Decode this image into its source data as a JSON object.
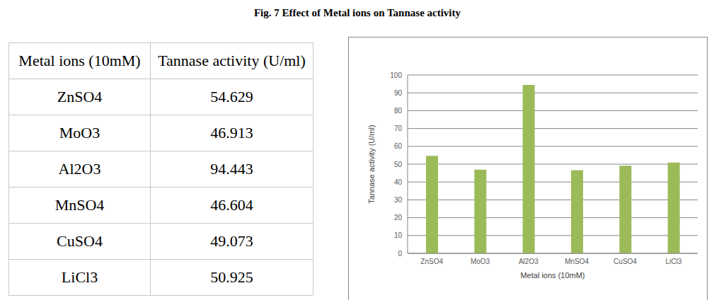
{
  "title": "Fig. 7 Effect of Metal ions on Tannase activity",
  "table": {
    "header": [
      "Metal ions (10mM)",
      "Tannase activity (U/ml)"
    ],
    "rows": [
      [
        "ZnSO4",
        "54.629"
      ],
      [
        "MoO3",
        "46.913"
      ],
      [
        "Al2O3",
        "94.443"
      ],
      [
        "MnSO4",
        "46.604"
      ],
      [
        "CuSO4",
        "49.073"
      ],
      [
        "LiCl3",
        "50.925"
      ]
    ]
  },
  "chart_data": {
    "type": "bar",
    "categories": [
      "ZnSO4",
      "MoO3",
      "Al2O3",
      "MnSO4",
      "CuSO4",
      "LiCl3"
    ],
    "values": [
      54.629,
      46.913,
      94.443,
      46.604,
      49.073,
      50.925
    ],
    "color": "#9bbb59",
    "x_label": "Metal ions (10mM)",
    "y_label": "Tannase activity (U/ml)",
    "ylim": [
      0,
      100
    ],
    "yticks": [
      0,
      10,
      20,
      30,
      40,
      50,
      60,
      70,
      80,
      90,
      100
    ],
    "grid": true
  }
}
